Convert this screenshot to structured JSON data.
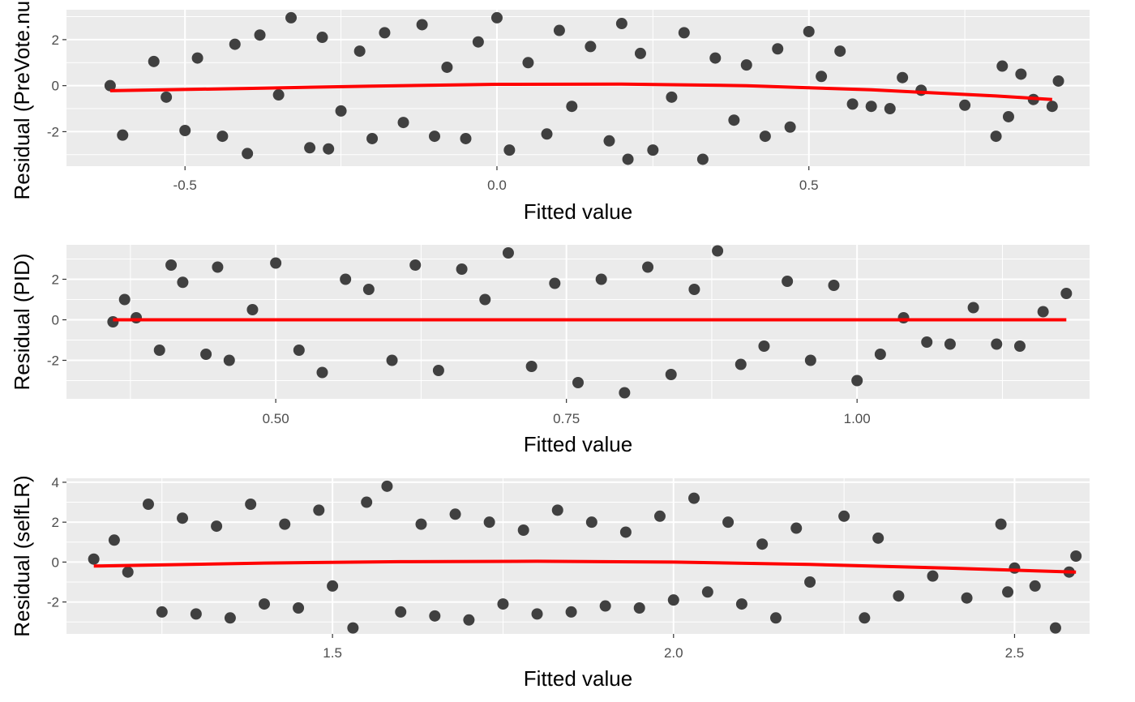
{
  "figure": {
    "point_color": "#404040",
    "smooth_color": "#ff0000",
    "panel_background": "#ebebeb",
    "grid_color": "#ffffff"
  },
  "chart_data": [
    {
      "type": "scatter",
      "xlabel": "Fitted value",
      "ylabel": "Residual (PreVote.num)",
      "xlim": [
        -0.69,
        0.95
      ],
      "ylim": [
        -3.5,
        3.3
      ],
      "x_ticks": [
        -0.5,
        0.0,
        0.5
      ],
      "x_tick_labels": [
        "-0.5",
        "0.0",
        "0.5"
      ],
      "y_ticks": [
        -2,
        0,
        2
      ],
      "y_tick_labels": [
        "-2",
        "0",
        "2"
      ],
      "grid": true,
      "smooth_line": {
        "x": [
          -0.62,
          -0.4,
          -0.2,
          0.0,
          0.2,
          0.4,
          0.6,
          0.8,
          0.89
        ],
        "y": [
          -0.22,
          -0.12,
          -0.02,
          0.06,
          0.07,
          0.0,
          -0.18,
          -0.45,
          -0.6
        ]
      },
      "points": {
        "x": [
          -0.62,
          -0.6,
          -0.55,
          -0.53,
          -0.5,
          -0.48,
          -0.44,
          -0.42,
          -0.4,
          -0.38,
          -0.35,
          -0.33,
          -0.3,
          -0.28,
          -0.27,
          -0.25,
          -0.22,
          -0.2,
          -0.18,
          -0.15,
          -0.12,
          -0.1,
          -0.08,
          -0.05,
          -0.03,
          0.0,
          0.02,
          0.05,
          0.08,
          0.1,
          0.12,
          0.15,
          0.18,
          0.2,
          0.21,
          0.23,
          0.25,
          0.28,
          0.3,
          0.33,
          0.35,
          0.38,
          0.4,
          0.43,
          0.45,
          0.47,
          0.5,
          0.52,
          0.55,
          0.57,
          0.6,
          0.63,
          0.65,
          0.68,
          0.75,
          0.8,
          0.81,
          0.82,
          0.84,
          0.86,
          0.89,
          0.9
        ],
        "y": [
          0.0,
          -2.15,
          1.05,
          -0.5,
          -1.95,
          1.2,
          -2.2,
          1.8,
          -2.95,
          2.2,
          -0.4,
          2.95,
          -2.7,
          2.1,
          -2.75,
          -1.1,
          1.5,
          -2.3,
          2.3,
          -1.6,
          2.65,
          -2.2,
          0.8,
          -2.3,
          1.9,
          2.95,
          -2.8,
          1.0,
          -2.1,
          2.4,
          -0.9,
          1.7,
          -2.4,
          2.7,
          -3.2,
          1.4,
          -2.8,
          -0.5,
          2.3,
          -3.2,
          1.2,
          -1.5,
          0.9,
          -2.2,
          1.6,
          -1.8,
          2.35,
          0.4,
          1.5,
          -0.8,
          -0.9,
          -1.0,
          0.35,
          -0.2,
          -0.85,
          -2.2,
          0.85,
          -1.35,
          0.5,
          -0.6,
          -0.9,
          0.2
        ]
      }
    },
    {
      "type": "scatter",
      "xlabel": "Fitted value",
      "ylabel": "Residual (PID)",
      "xlim": [
        0.32,
        1.2
      ],
      "ylim": [
        -3.9,
        3.7
      ],
      "x_ticks": [
        0.5,
        0.75,
        1.0
      ],
      "x_tick_labels": [
        "0.50",
        "0.75",
        "1.00"
      ],
      "y_ticks": [
        -2,
        0,
        2
      ],
      "y_tick_labels": [
        "-2",
        "0",
        "2"
      ],
      "grid": true,
      "smooth_line": {
        "x": [
          0.36,
          0.5,
          0.7,
          0.9,
          1.1,
          1.18
        ],
        "y": [
          0.0,
          0.0,
          0.0,
          0.0,
          0.0,
          0.0
        ]
      },
      "points": {
        "x": [
          0.36,
          0.37,
          0.38,
          0.4,
          0.41,
          0.42,
          0.44,
          0.45,
          0.46,
          0.48,
          0.5,
          0.52,
          0.54,
          0.56,
          0.58,
          0.6,
          0.62,
          0.64,
          0.66,
          0.68,
          0.7,
          0.72,
          0.74,
          0.76,
          0.78,
          0.8,
          0.82,
          0.84,
          0.86,
          0.88,
          0.9,
          0.92,
          0.94,
          0.96,
          0.98,
          1.0,
          1.02,
          1.04,
          1.06,
          1.08,
          1.1,
          1.12,
          1.14,
          1.16,
          1.18
        ],
        "y": [
          -0.1,
          1.0,
          0.1,
          -1.5,
          2.7,
          1.85,
          -1.7,
          2.6,
          -2.0,
          0.5,
          2.8,
          -1.5,
          -2.6,
          2.0,
          1.5,
          -2.0,
          2.7,
          -2.5,
          2.5,
          1.0,
          3.3,
          -2.3,
          1.8,
          -3.1,
          2.0,
          -3.6,
          2.6,
          -2.7,
          1.5,
          3.4,
          -2.2,
          -1.3,
          1.9,
          -2.0,
          1.7,
          -3.0,
          -1.7,
          0.1,
          -1.1,
          -1.2,
          0.6,
          -1.2,
          -1.3,
          0.4,
          1.3
        ]
      }
    },
    {
      "type": "scatter",
      "xlabel": "Fitted value",
      "ylabel": "Residual (selfLR)",
      "xlim": [
        1.11,
        2.61
      ],
      "ylim": [
        -3.6,
        4.2
      ],
      "x_ticks": [
        1.5,
        2.0,
        2.5
      ],
      "x_tick_labels": [
        "1.5",
        "2.0",
        "2.5"
      ],
      "y_ticks": [
        -2,
        0,
        2,
        4
      ],
      "y_tick_labels": [
        "-2",
        "0",
        "2",
        "4"
      ],
      "grid": true,
      "smooth_line": {
        "x": [
          1.15,
          1.4,
          1.6,
          1.8,
          2.0,
          2.2,
          2.4,
          2.59
        ],
        "y": [
          -0.2,
          -0.05,
          0.02,
          0.04,
          0.0,
          -0.12,
          -0.3,
          -0.5
        ]
      },
      "points": {
        "x": [
          1.15,
          1.18,
          1.2,
          1.23,
          1.25,
          1.28,
          1.3,
          1.33,
          1.35,
          1.38,
          1.4,
          1.43,
          1.45,
          1.48,
          1.5,
          1.53,
          1.55,
          1.58,
          1.6,
          1.63,
          1.65,
          1.68,
          1.7,
          1.73,
          1.75,
          1.78,
          1.8,
          1.83,
          1.85,
          1.88,
          1.9,
          1.93,
          1.95,
          1.98,
          2.0,
          2.03,
          2.05,
          2.08,
          2.1,
          2.13,
          2.15,
          2.18,
          2.2,
          2.25,
          2.28,
          2.3,
          2.33,
          2.38,
          2.43,
          2.48,
          2.49,
          2.5,
          2.53,
          2.56,
          2.58,
          2.59
        ],
        "y": [
          0.15,
          1.1,
          -0.5,
          2.9,
          -2.5,
          2.2,
          -2.6,
          1.8,
          -2.8,
          2.9,
          -2.1,
          1.9,
          -2.3,
          2.6,
          -1.2,
          -3.3,
          3.0,
          3.8,
          -2.5,
          1.9,
          -2.7,
          2.4,
          -2.9,
          2.0,
          -2.1,
          1.6,
          -2.6,
          2.6,
          -2.5,
          2.0,
          -2.2,
          1.5,
          -2.3,
          2.3,
          -1.9,
          3.2,
          -1.5,
          2.0,
          -2.1,
          0.9,
          -2.8,
          1.7,
          -1.0,
          2.3,
          -2.8,
          1.2,
          -1.7,
          -0.7,
          -1.8,
          1.9,
          -1.5,
          -0.3,
          -1.2,
          -3.3,
          -0.5,
          0.3
        ]
      }
    }
  ]
}
